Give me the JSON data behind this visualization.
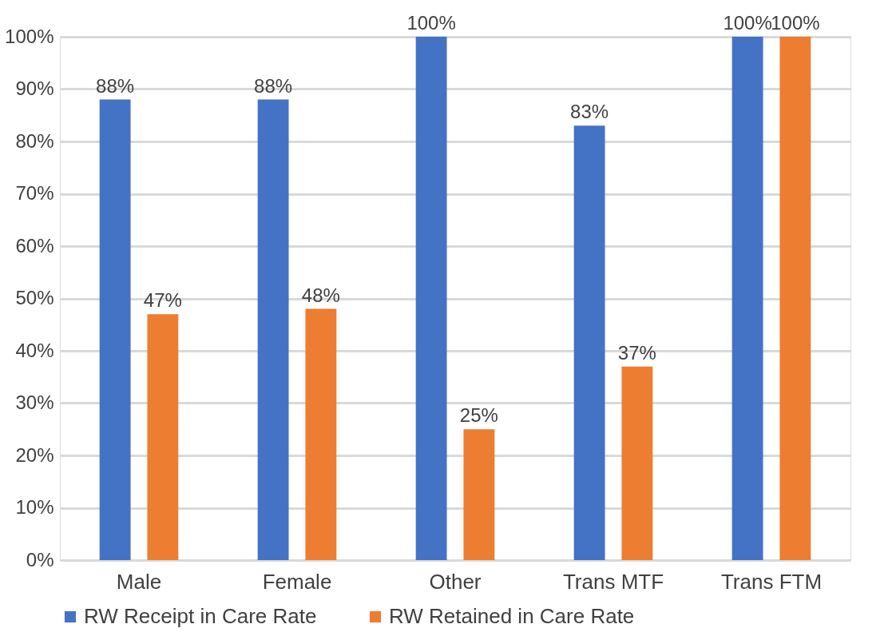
{
  "chart_data": {
    "type": "bar",
    "categories": [
      "Male",
      "Female",
      "Other",
      "Trans MTF",
      "Trans FTM"
    ],
    "series": [
      {
        "name": "RW Receipt in Care Rate",
        "color": "#4472c4",
        "values": [
          88,
          88,
          100,
          83,
          100
        ],
        "value_labels": [
          "88%",
          "88%",
          "100%",
          "83%",
          "100%"
        ]
      },
      {
        "name": "RW Retained in Care Rate",
        "color": "#ed7d31",
        "values": [
          47,
          48,
          25,
          37,
          100
        ],
        "value_labels": [
          "47%",
          "48%",
          "25%",
          "37%",
          "100%"
        ]
      }
    ],
    "ylim": [
      0,
      100
    ],
    "yticks": [
      {
        "value": 0,
        "label": "0%"
      },
      {
        "value": 10,
        "label": "10%"
      },
      {
        "value": 20,
        "label": "20%"
      },
      {
        "value": 30,
        "label": "30%"
      },
      {
        "value": 40,
        "label": "40%"
      },
      {
        "value": 50,
        "label": "50%"
      },
      {
        "value": 60,
        "label": "60%"
      },
      {
        "value": 70,
        "label": "70%"
      },
      {
        "value": 80,
        "label": "80%"
      },
      {
        "value": 90,
        "label": "90%"
      },
      {
        "value": 100,
        "label": "100%"
      }
    ],
    "grid": "y",
    "legend": "bottom"
  }
}
